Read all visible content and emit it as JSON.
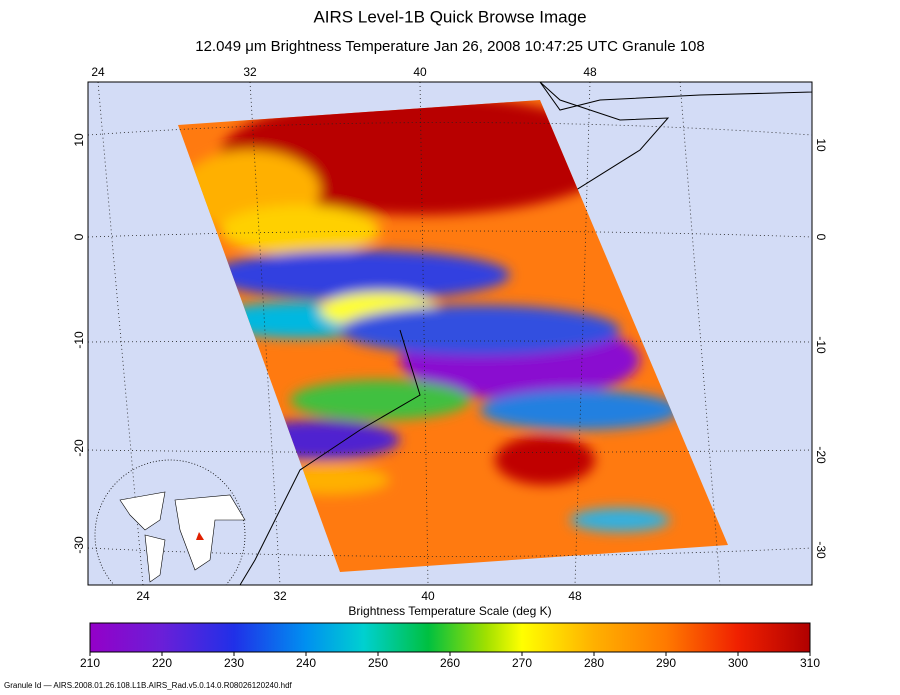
{
  "header": {
    "title": "AIRS Level-1B Quick Browse Image",
    "subtitle": "12.049 μm Brightness Temperature   Jan 26, 2008 10:47:25 UTC  Granule 108"
  },
  "map": {
    "lon_labels_top": [
      "24",
      "32",
      "40",
      "48"
    ],
    "lon_labels_bottom": [
      "24",
      "32",
      "40",
      "48"
    ],
    "lat_labels_left": [
      "10",
      "0",
      "-10",
      "-20",
      "-30"
    ],
    "lat_labels_right": [
      "10",
      "0",
      "-10",
      "-20",
      "-30"
    ]
  },
  "colorbar": {
    "title": "Brightness Temperature Scale (deg K)",
    "range": [
      210,
      310
    ],
    "ticks": [
      210,
      220,
      230,
      240,
      250,
      260,
      270,
      280,
      290,
      300,
      310
    ]
  },
  "footer": "Granule Id — AIRS.2008.01.26.108.L1B.AIRS_Rad.v5.0.14.0.R08026120240.hdf"
}
